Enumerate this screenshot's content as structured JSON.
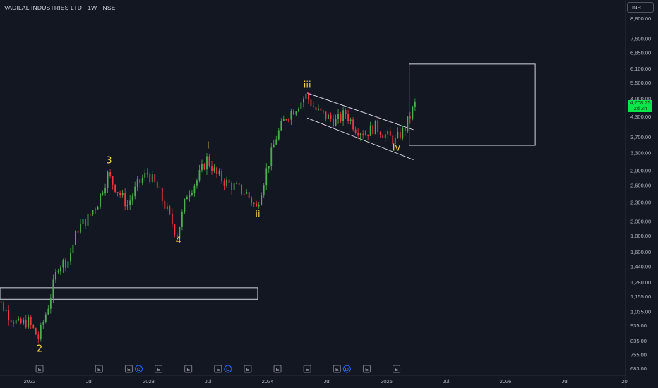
{
  "title": "VADILAL INDUSTRIES LTD · 1W · NSE",
  "currency": "INR",
  "last_price_label": "4,708.25",
  "last_price_sublabel": "2d 2h",
  "colors": {
    "background": "#131722",
    "up": "#4caf50",
    "down": "#f23645",
    "last_price": "#08e64a",
    "wave_label": "#f7d34a",
    "shapes": "#d1d4dc",
    "axis_text": "#b2b5be"
  },
  "chart_data": {
    "type": "candlestick",
    "title": "VADILAL INDUSTRIES LTD · 1W · NSE",
    "y_scale": "log",
    "y_ticks": [
      8800,
      7600,
      6850,
      6100,
      5500,
      4900,
      4300,
      3700,
      3300,
      2900,
      2600,
      2300,
      2000,
      1800,
      1600,
      1440,
      1280,
      1155,
      1035,
      935,
      835,
      755,
      683
    ],
    "y_tick_labels": [
      "8,800.00",
      "7,600.00",
      "6,850.00",
      "6,100.00",
      "5,500.00",
      "4,900.00",
      "4,300.00",
      "3,700.00",
      "3,300.00",
      "2,900.00",
      "2,600.00",
      "2,300.00",
      "2,000.00",
      "1,800.00",
      "1,600.00",
      "1,440.00",
      "1,280.00",
      "1,155.00",
      "1,035.00",
      "935.00",
      "835.00",
      "755.00",
      "683.00"
    ],
    "x_ticks": [
      "2022",
      "Jul",
      "2023",
      "Jul",
      "2024",
      "Jul",
      "2025",
      "Jul",
      "2026",
      "Jul",
      "20"
    ],
    "x_tick_dates": [
      "2022-01",
      "2022-07",
      "2023-01",
      "2023-07",
      "2024-01",
      "2024-07",
      "2025-01",
      "2025-07",
      "2026-01",
      "2026-07",
      "2027-01"
    ],
    "last_price": 4708.25,
    "price_path": [
      [
        "2021-09",
        1130
      ],
      [
        "2021-10",
        1120
      ],
      [
        "2021-11",
        1010
      ],
      [
        "2021-12",
        940
      ],
      [
        "2022-01",
        960
      ],
      [
        "2022-02",
        850
      ],
      [
        "2022-03",
        1080
      ],
      [
        "2022-04",
        1450
      ],
      [
        "2022-05",
        1500
      ],
      [
        "2022-06",
        1900
      ],
      [
        "2022-07",
        2050
      ],
      [
        "2022-08",
        2300
      ],
      [
        "2022-09",
        2800
      ],
      [
        "2022-10",
        2500
      ],
      [
        "2022-11",
        2250
      ],
      [
        "2022-12",
        2600
      ],
      [
        "2023-01",
        2850
      ],
      [
        "2023-02",
        2550
      ],
      [
        "2023-03",
        2150
      ],
      [
        "2023-04",
        1800
      ],
      [
        "2023-05",
        2450
      ],
      [
        "2023-06",
        2700
      ],
      [
        "2023-07",
        3150
      ],
      [
        "2023-08",
        2800
      ],
      [
        "2023-09",
        2650
      ],
      [
        "2023-10",
        2550
      ],
      [
        "2023-11",
        2450
      ],
      [
        "2023-12",
        2200
      ],
      [
        "2024-01",
        2900
      ],
      [
        "2024-02",
        3700
      ],
      [
        "2024-03",
        4300
      ],
      [
        "2024-04",
        4600
      ],
      [
        "2024-05",
        5000
      ],
      [
        "2024-06",
        4500
      ],
      [
        "2024-07",
        4300
      ],
      [
        "2024-08",
        4150
      ],
      [
        "2024-09",
        4400
      ],
      [
        "2024-10",
        3950
      ],
      [
        "2024-11",
        3800
      ],
      [
        "2024-12",
        4000
      ],
      [
        "2025-01",
        3750
      ],
      [
        "2025-02",
        3600
      ],
      [
        "2025-03",
        3950
      ],
      [
        "2025-04",
        4708
      ]
    ],
    "wave_labels": [
      {
        "text": "2",
        "date": "2022-02",
        "price": 770
      },
      {
        "text": "3",
        "date": "2022-09",
        "price": 3050
      },
      {
        "text": "4",
        "date": "2023-04",
        "price": 1700
      },
      {
        "text": "i",
        "date": "2023-07",
        "price": 3400
      },
      {
        "text": "ii",
        "date": "2023-12",
        "price": 2060
      },
      {
        "text": "iii",
        "date": "2024-05",
        "price": 5300
      },
      {
        "text": "iv",
        "date": "2025-02",
        "price": 3350
      }
    ],
    "channel": {
      "upper": [
        [
          "2024-05",
          5100
        ],
        [
          "2025-03",
          3900
        ]
      ],
      "lower": [
        [
          "2024-05",
          4250
        ],
        [
          "2025-03",
          3130
        ]
      ]
    },
    "boxes": [
      {
        "x": [
          "2021-09",
          "2023-12"
        ],
        "y": [
          1130,
          1230
        ]
      },
      {
        "x": [
          "2025-04",
          "2026-04"
        ],
        "y": [
          3480,
          6300
        ]
      }
    ],
    "event_markers": [
      {
        "type": "E",
        "date": "2021-09"
      },
      {
        "type": "E",
        "date": "2022-02"
      },
      {
        "type": "E",
        "date": "2022-08"
      },
      {
        "type": "E",
        "date": "2022-11"
      },
      {
        "type": "D",
        "date": "2022-12"
      },
      {
        "type": "E",
        "date": "2023-02"
      },
      {
        "type": "E",
        "date": "2023-05"
      },
      {
        "type": "E",
        "date": "2023-08"
      },
      {
        "type": "D",
        "date": "2023-09"
      },
      {
        "type": "E",
        "date": "2023-11"
      },
      {
        "type": "E",
        "date": "2024-02"
      },
      {
        "type": "E",
        "date": "2024-05"
      },
      {
        "type": "E",
        "date": "2024-08"
      },
      {
        "type": "D",
        "date": "2024-09"
      },
      {
        "type": "E",
        "date": "2024-11"
      },
      {
        "type": "E",
        "date": "2025-02"
      }
    ]
  }
}
